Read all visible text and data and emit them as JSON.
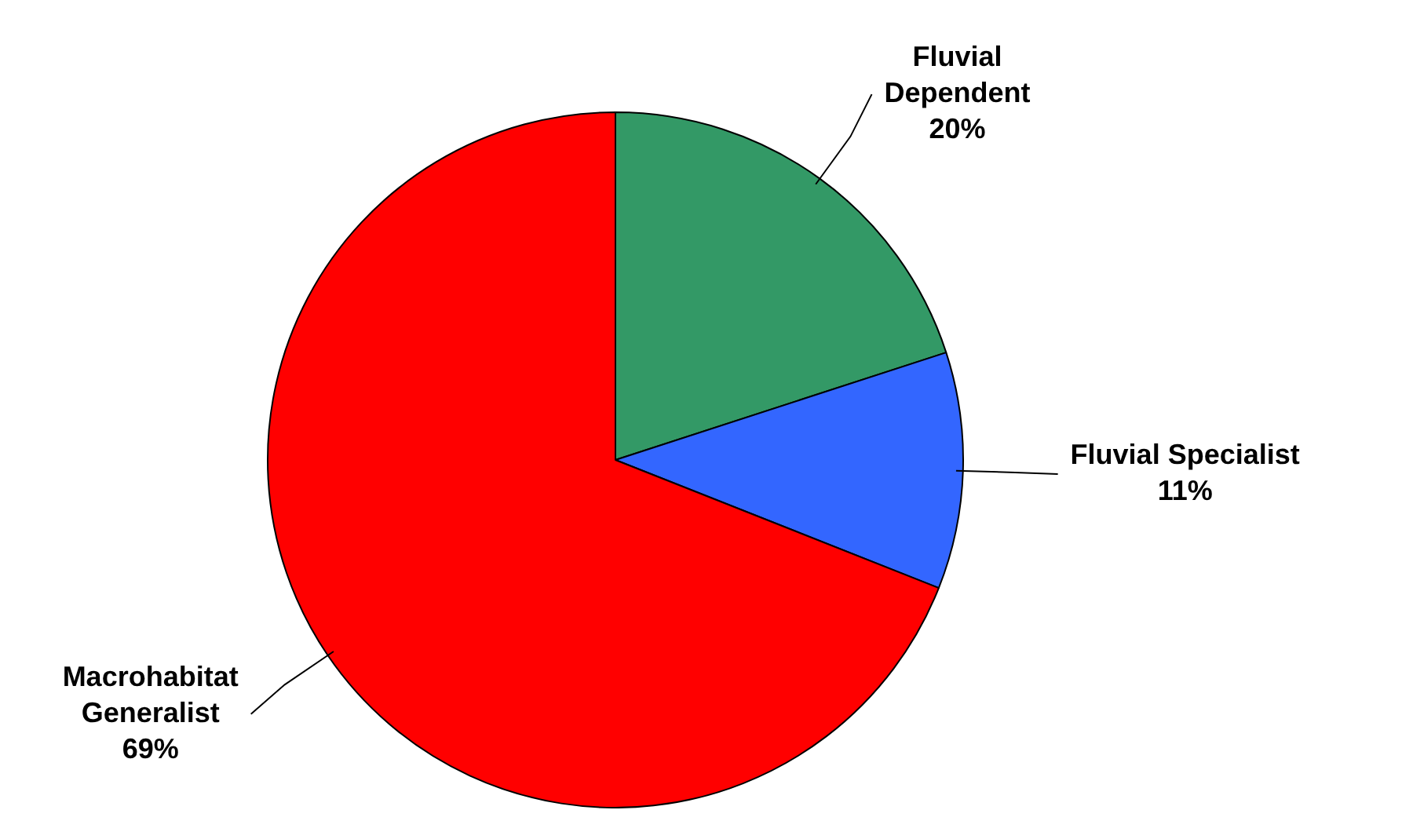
{
  "chart_data": {
    "type": "pie",
    "categories": [
      "Fluvial Dependent",
      "Fluvial Specialist",
      "Macrohabitat Generalist"
    ],
    "values": [
      20,
      11,
      69
    ],
    "colors": [
      "#339966",
      "#3366ff",
      "#ff0000"
    ],
    "value_labels": [
      "20%",
      "11%",
      "69%"
    ]
  }
}
